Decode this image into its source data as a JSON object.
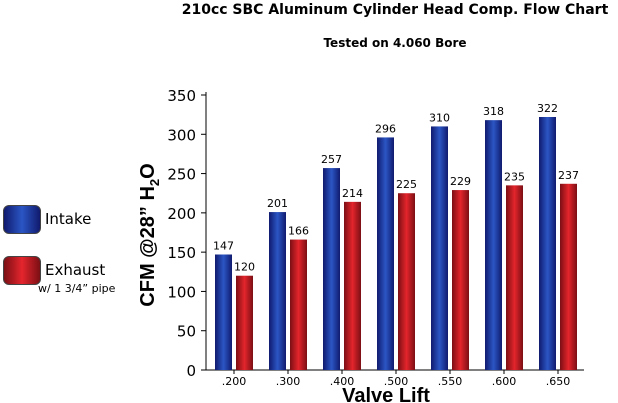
{
  "title": "210cc SBC Aluminum Cylinder Head Comp. Flow Chart",
  "subtitle": "Tested on 4.060 Bore",
  "legend": {
    "intake_label": "Intake",
    "exhaust_label": "Exhaust",
    "exhaust_note": "w/ 1 3/4” pipe"
  },
  "colors": {
    "intake_dark": "#101a6e",
    "intake_light": "#2b56c4",
    "exhaust_dark": "#7a0f14",
    "exhaust_light": "#e5252d"
  },
  "chart_data": {
    "type": "bar",
    "title": "210cc SBC Aluminum Cylinder Head Comp. Flow Chart",
    "subtitle": "Tested on 4.060 Bore",
    "xlabel": "Valve Lift",
    "ylabel": "CFM @28” H₂O",
    "ylabel_parts": {
      "main": "CFM @28” H",
      "sub": "2",
      "tail": "O"
    },
    "categories": [
      ".200",
      ".300",
      ".400",
      ".500",
      ".550",
      ".600",
      ".650"
    ],
    "series": [
      {
        "name": "Intake",
        "values": [
          147,
          201,
          257,
          296,
          310,
          318,
          322
        ]
      },
      {
        "name": "Exhaust",
        "values": [
          120,
          166,
          214,
          225,
          229,
          235,
          237
        ]
      }
    ],
    "ylim": [
      0,
      350
    ],
    "yticks": [
      0,
      50,
      100,
      150,
      200,
      250,
      300,
      350
    ],
    "grid": false,
    "legend_position": "left"
  }
}
